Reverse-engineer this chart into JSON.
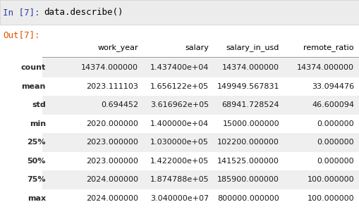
{
  "prompt_text": "data.describe()",
  "in_label": "In [7]:",
  "out_label": "Out[7]:",
  "header_labels": [
    "work_year",
    "salary",
    "salary_in_usd",
    "remote_ratio"
  ],
  "rows": [
    [
      "count",
      "14374.000000",
      "1.437400e+04",
      "14374.000000",
      "14374.000000"
    ],
    [
      "mean",
      "2023.111103",
      "1.656122e+05",
      "149949.567831",
      "33.094476"
    ],
    [
      "std",
      "0.694452",
      "3.616962e+05",
      "68941.728524",
      "46.600094"
    ],
    [
      "min",
      "2020.000000",
      "1.400000e+04",
      "15000.000000",
      "0.000000"
    ],
    [
      "25%",
      "2023.000000",
      "1.030000e+05",
      "102200.000000",
      "0.000000"
    ],
    [
      "50%",
      "2023.000000",
      "1.422000e+05",
      "141525.000000",
      "0.000000"
    ],
    [
      "75%",
      "2024.000000",
      "1.874788e+05",
      "185900.000000",
      "100.000000"
    ],
    [
      "max",
      "2024.000000",
      "3.040000e+07",
      "800000.000000",
      "100.000000"
    ]
  ],
  "bg_color": "#ffffff",
  "row_even_bg": "#efefef",
  "row_odd_bg": "#ffffff",
  "in_label_color": "#303f9f",
  "out_label_color": "#e65100",
  "prompt_color": "#000000",
  "index_color": "#2c2c2c",
  "header_color": "#000000",
  "prompt_bg": "#ececec",
  "prompt_border_color": "#cccccc",
  "header_line_color": "#999999",
  "cell_text_color": "#1a1a1a",
  "fontsize": 8.0,
  "prompt_fontsize": 9.0
}
